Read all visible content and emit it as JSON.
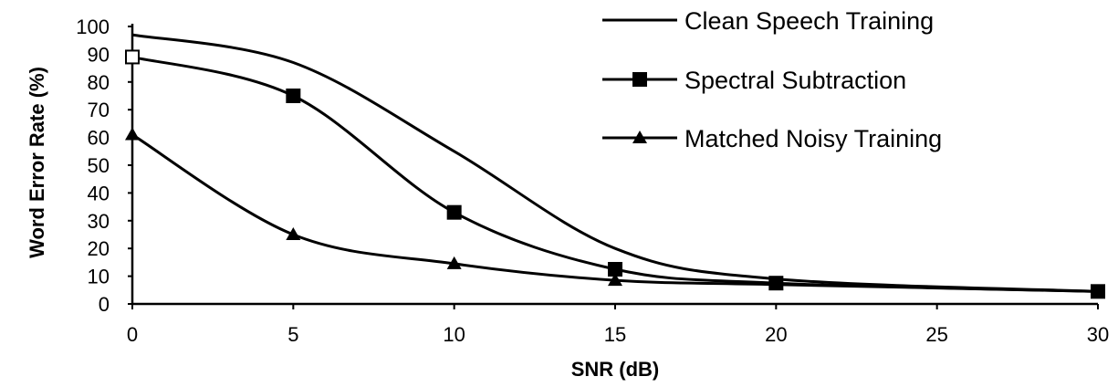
{
  "chart_data": {
    "type": "line",
    "xlabel": "SNR (dB)",
    "ylabel": "Word Error Rate (%)",
    "x_ticks": [
      "0",
      "5",
      "10",
      "15",
      "20",
      "25",
      "30"
    ],
    "y_ticks": [
      "0",
      "10",
      "20",
      "30",
      "40",
      "50",
      "60",
      "70",
      "80",
      "90",
      "100"
    ],
    "xlim": [
      0,
      30
    ],
    "ylim": [
      0,
      100
    ],
    "grid": false,
    "legend_position": "top-right",
    "series": [
      {
        "name": "Clean Speech Training",
        "marker": "none",
        "x": [
          0,
          5,
          10,
          15,
          20,
          30
        ],
        "y": [
          97,
          87,
          55,
          20,
          9,
          4.5
        ]
      },
      {
        "name": "Spectral Subtraction",
        "marker": "square",
        "x": [
          0,
          5,
          10,
          15,
          20,
          30
        ],
        "y": [
          89,
          75,
          33,
          12.5,
          7.5,
          4.5
        ]
      },
      {
        "name": "Matched Noisy Training",
        "marker": "triangle",
        "x": [
          0,
          5,
          10,
          15,
          20,
          30
        ],
        "y": [
          61,
          25,
          14.5,
          8.5,
          7,
          4.5
        ]
      }
    ]
  }
}
